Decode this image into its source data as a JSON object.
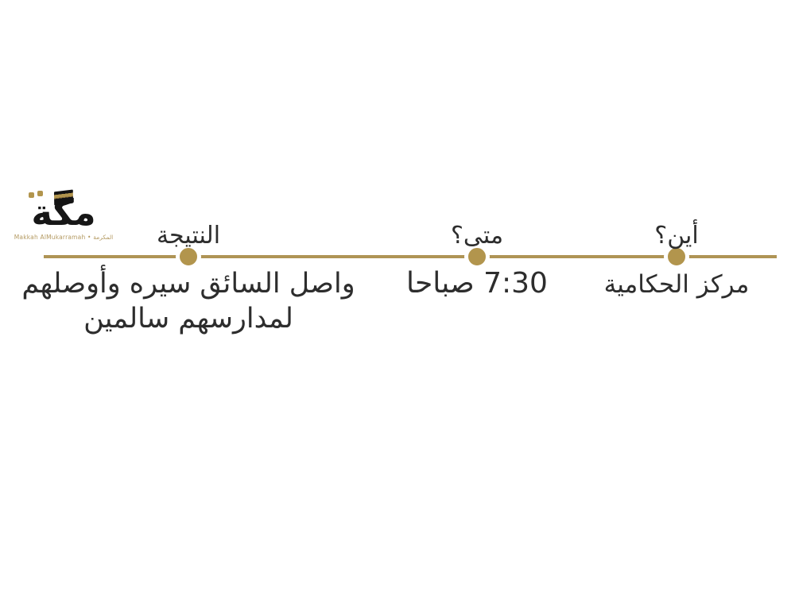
{
  "page": {
    "background_color": "#ffffff"
  },
  "logo": {
    "wordmark": "مكة",
    "tagline": "Makkah AlMukarramah • المكرمة",
    "wordmark_color": "#161616",
    "tagline_color": "#b49a62",
    "accent_color": "#b2954d"
  },
  "timeline": {
    "line_color": "#af9455",
    "dot_color": "#b2954d",
    "items": [
      {
        "id": "where",
        "question": "أين؟",
        "answer": "مركز الحكامية"
      },
      {
        "id": "when",
        "question": "متى؟",
        "answer": "7:30 صباحا"
      },
      {
        "id": "result",
        "question": "النتيجة",
        "answer_line1": "واصل السائق سيره وأوصلهم",
        "answer_line2": "لمدارسهم سالمين"
      }
    ]
  }
}
